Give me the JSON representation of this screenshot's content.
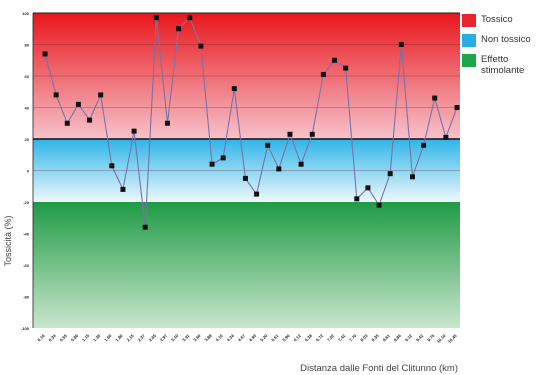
{
  "chart_data": {
    "type": "line",
    "xlabel": "Distanza dalle Fonti del Clitunno (km)",
    "ylabel": "Tossicità (%)",
    "ylim": [
      -100,
      100
    ],
    "bands": [
      {
        "label": "Tossico",
        "from": 20,
        "to": 100,
        "color": "#e8242e"
      },
      {
        "label": "Non tossico",
        "from": -20,
        "to": 20,
        "color": "#28aee0"
      },
      {
        "label": "Effetto stimolante",
        "from": -100,
        "to": -20,
        "color": "#21a54a"
      }
    ],
    "series": [
      {
        "color": "#7a72a8",
        "values": [
          74,
          48,
          30,
          42,
          32,
          48,
          3,
          -12,
          25,
          -36,
          97,
          30,
          90,
          97,
          79,
          4,
          8,
          52,
          -5,
          -15,
          16,
          1,
          23,
          4,
          23,
          61,
          70,
          65,
          -18,
          -11,
          -22,
          -2,
          80,
          -4,
          16,
          46,
          21,
          40
        ]
      }
    ],
    "x_tick_labels": [
      "0.16",
      "0.34",
      "0.55",
      "0.86",
      "1.15",
      "1.35",
      "1.66",
      "1.80",
      "2.15",
      "2.37",
      "2.65",
      "2.97",
      "3.10",
      "3.41",
      "3.60",
      "3.88",
      "4.10",
      "4.34",
      "4.67",
      "4.93",
      "5.20",
      "5.61",
      "5.90",
      "6.12",
      "6.38",
      "6.72",
      "7.02",
      "7.42",
      "7.70",
      "8.03",
      "8.35",
      "8.61",
      "8.86",
      "9.12",
      "9.42",
      "9.75",
      "10.10",
      "10.45"
    ],
    "y_tick_labels": [
      "-100",
      "-80",
      "-60",
      "-40",
      "-20",
      "0",
      "20",
      "40",
      "60",
      "80",
      "100"
    ],
    "legend_position": "right",
    "grid": true
  },
  "legend": [
    {
      "label": "Tossico",
      "color": "#e8242e"
    },
    {
      "label": "Non tossico",
      "color": "#28aee0"
    },
    {
      "label": "Effetto stimolante",
      "color": "#21a54a"
    }
  ]
}
